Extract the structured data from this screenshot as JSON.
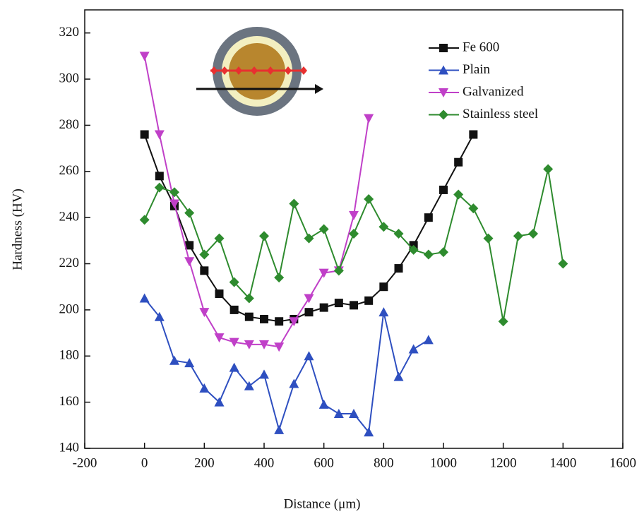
{
  "chart_data": {
    "type": "line",
    "x_label": "Distance (μm)",
    "y_label": "Hardness (HV)",
    "xlim": [
      -200,
      1600
    ],
    "ylim": [
      140,
      330
    ],
    "xticks": [
      -200,
      0,
      200,
      400,
      600,
      800,
      1000,
      1200,
      1400,
      1600
    ],
    "yticks": [
      140,
      160,
      180,
      200,
      220,
      240,
      260,
      280,
      300,
      320
    ],
    "legend": "top-right",
    "series": [
      {
        "name": "Fe 600",
        "color": "#111111",
        "marker": "square",
        "x": [
          0,
          50,
          100,
          150,
          200,
          250,
          300,
          350,
          400,
          450,
          500,
          550,
          600,
          650,
          700,
          750,
          800,
          850,
          900,
          950,
          1000,
          1050,
          1100
        ],
        "values": [
          276,
          258,
          245,
          228,
          217,
          207,
          200,
          197,
          196,
          195,
          196,
          199,
          201,
          203,
          202,
          204,
          210,
          218,
          228,
          240,
          252,
          264,
          276
        ]
      },
      {
        "name": "Plain",
        "color": "#2e4fc0",
        "marker": "triangle-up",
        "x": [
          0,
          50,
          100,
          150,
          200,
          250,
          300,
          350,
          400,
          450,
          500,
          550,
          600,
          650,
          700,
          750,
          800,
          850,
          900,
          950
        ],
        "values": [
          205,
          197,
          178,
          177,
          166,
          160,
          175,
          167,
          172,
          148,
          168,
          180,
          159,
          155,
          155,
          147,
          199,
          171,
          183,
          187
        ]
      },
      {
        "name": "Galvanized",
        "color": "#c040c8",
        "marker": "triangle-down",
        "x": [
          0,
          50,
          100,
          150,
          200,
          250,
          300,
          350,
          400,
          450,
          500,
          550,
          600,
          650,
          700,
          750
        ],
        "values": [
          310,
          276,
          246,
          221,
          199,
          188,
          186,
          185,
          185,
          184,
          195,
          205,
          216,
          217,
          241,
          283
        ]
      },
      {
        "name": "Stainless steel",
        "color": "#2e8b2e",
        "marker": "diamond",
        "x": [
          0,
          50,
          100,
          150,
          200,
          250,
          300,
          350,
          400,
          450,
          500,
          550,
          600,
          650,
          700,
          750,
          800,
          850,
          900,
          950,
          1000,
          1050,
          1100,
          1150,
          1200,
          1250,
          1300,
          1350,
          1400
        ],
        "values": [
          239,
          253,
          251,
          242,
          224,
          231,
          212,
          205,
          232,
          214,
          246,
          231,
          235,
          217,
          233,
          248,
          236,
          233,
          226,
          224,
          225,
          250,
          244,
          231,
          195,
          232,
          233,
          261,
          220
        ]
      }
    ]
  }
}
